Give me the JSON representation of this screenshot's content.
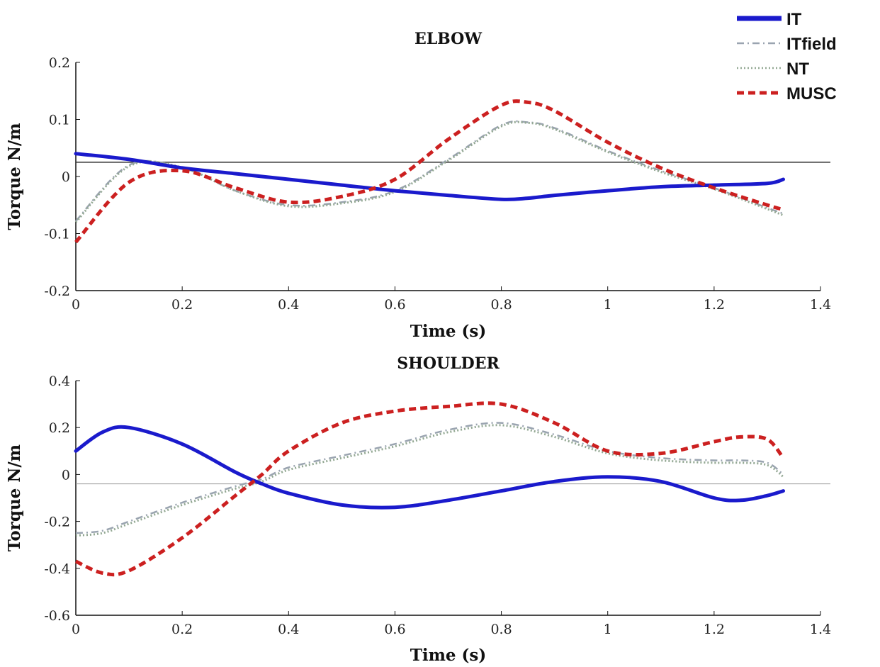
{
  "legend": [
    {
      "label": "IT",
      "color": "#1a1acc",
      "style": "solid"
    },
    {
      "label": "ITfield",
      "color": "#9aa4b0",
      "style": "dashdot"
    },
    {
      "label": "NT",
      "color": "#93a893",
      "style": "dotted"
    },
    {
      "label": "MUSC",
      "color": "#cc2020",
      "style": "dashed"
    }
  ],
  "chart_data": [
    {
      "type": "line",
      "title": "ELBOW",
      "xlabel": "Time (s)",
      "ylabel": "Torque N/m",
      "xlim": [
        0,
        1.4
      ],
      "ylim": [
        -0.2,
        0.2
      ],
      "xticks": [
        "0",
        "0.2",
        "0.4",
        "0.6",
        "0.8",
        "1",
        "1.2",
        "1.4"
      ],
      "yticks": [
        "-0.2",
        "-0.1",
        "0",
        "0.1",
        "0.2"
      ],
      "reference_line_y": 0.025,
      "x": [
        0,
        0.1,
        0.2,
        0.3,
        0.4,
        0.5,
        0.6,
        0.7,
        0.8,
        0.85,
        0.9,
        1.0,
        1.1,
        1.2,
        1.3,
        1.33
      ],
      "series": [
        {
          "name": "IT",
          "values": [
            0.04,
            0.03,
            0.015,
            0.005,
            -0.005,
            -0.015,
            -0.025,
            -0.033,
            -0.04,
            -0.038,
            -0.033,
            -0.025,
            -0.018,
            -0.015,
            -0.012,
            -0.005
          ]
        },
        {
          "name": "ITfield",
          "values": [
            -0.078,
            0.02,
            0.015,
            -0.025,
            -0.05,
            -0.045,
            -0.025,
            0.03,
            0.09,
            0.095,
            0.085,
            0.045,
            0.01,
            -0.02,
            -0.055,
            -0.065
          ]
        },
        {
          "name": "NT",
          "values": [
            -0.08,
            0.018,
            0.016,
            -0.025,
            -0.052,
            -0.047,
            -0.027,
            0.028,
            0.088,
            0.094,
            0.083,
            0.043,
            0.008,
            -0.022,
            -0.057,
            -0.068
          ]
        },
        {
          "name": "MUSC",
          "values": [
            -0.115,
            -0.01,
            0.01,
            -0.02,
            -0.045,
            -0.035,
            -0.005,
            0.065,
            0.125,
            0.13,
            0.115,
            0.06,
            0.015,
            -0.02,
            -0.05,
            -0.058
          ]
        }
      ]
    },
    {
      "type": "line",
      "title": "SHOULDER",
      "xlabel": "Time (s)",
      "ylabel": "Torque N/m",
      "xlim": [
        0,
        1.4
      ],
      "ylim": [
        -0.6,
        0.4
      ],
      "xticks": [
        "0",
        "0.2",
        "0.4",
        "0.6",
        "0.8",
        "1",
        "1.2",
        "1.4"
      ],
      "yticks": [
        "-0.6",
        "-0.4",
        "-0.2",
        "0",
        "0.2",
        "0.4"
      ],
      "reference_line_y": -0.04,
      "x": [
        0,
        0.05,
        0.1,
        0.2,
        0.3,
        0.35,
        0.4,
        0.5,
        0.6,
        0.7,
        0.8,
        0.9,
        1.0,
        1.1,
        1.2,
        1.25,
        1.3,
        1.33
      ],
      "series": [
        {
          "name": "IT",
          "values": [
            0.1,
            0.18,
            0.2,
            0.13,
            0.01,
            -0.04,
            -0.08,
            -0.13,
            -0.14,
            -0.11,
            -0.07,
            -0.03,
            -0.01,
            -0.03,
            -0.1,
            -0.11,
            -0.09,
            -0.07
          ]
        },
        {
          "name": "ITfield",
          "values": [
            -0.25,
            -0.24,
            -0.2,
            -0.12,
            -0.05,
            -0.02,
            0.03,
            0.08,
            0.13,
            0.19,
            0.22,
            0.17,
            0.1,
            0.07,
            0.06,
            0.06,
            0.05,
            0.0
          ]
        },
        {
          "name": "NT",
          "values": [
            -0.26,
            -0.25,
            -0.21,
            -0.13,
            -0.06,
            -0.03,
            0.02,
            0.07,
            0.12,
            0.18,
            0.21,
            0.16,
            0.09,
            0.06,
            0.05,
            0.05,
            0.04,
            -0.01
          ]
        },
        {
          "name": "MUSC",
          "values": [
            -0.37,
            -0.42,
            -0.41,
            -0.27,
            -0.09,
            0.0,
            0.1,
            0.22,
            0.27,
            0.29,
            0.3,
            0.22,
            0.1,
            0.09,
            0.14,
            0.16,
            0.15,
            0.07
          ]
        }
      ]
    }
  ]
}
